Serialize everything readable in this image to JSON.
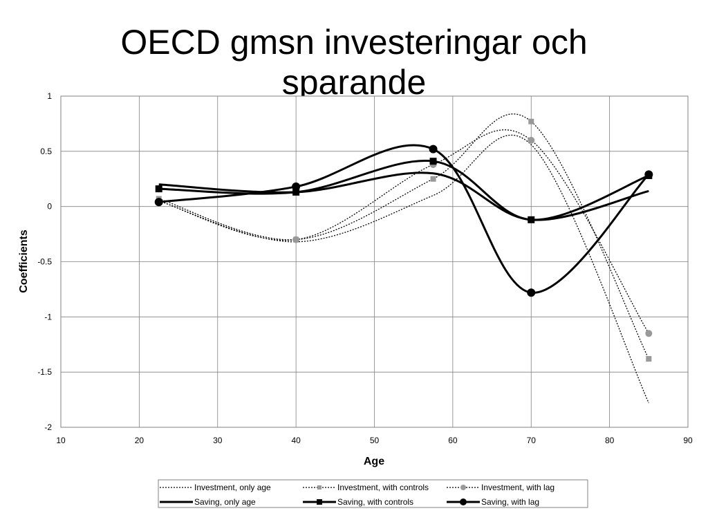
{
  "slide": {
    "title_line1": "OECD gmsn investeringar och",
    "title_line2": "sparande"
  },
  "chart_data": {
    "type": "line",
    "title": "OECD gmsn investeringar och sparande",
    "xlabel": "Age",
    "ylabel": "Coefficients",
    "xlim": [
      10,
      90
    ],
    "ylim": [
      -2,
      1
    ],
    "x_ticks": [
      10,
      20,
      30,
      40,
      50,
      60,
      70,
      80,
      90
    ],
    "y_ticks": [
      1,
      0.5,
      0,
      -0.5,
      -1,
      -1.5,
      -2
    ],
    "y_tick_labels": [
      "1",
      "0.5",
      "0",
      "-0.5",
      "-1",
      "-1.5",
      "-2"
    ],
    "grid": true,
    "legend_position": "bottom",
    "x": [
      22.5,
      40,
      57.5,
      70,
      85
    ],
    "series": [
      {
        "name": "Investment, only age",
        "values": [
          0.05,
          -0.32,
          0.1,
          0.56,
          -1.78
        ],
        "style": "dotted",
        "color": "#000000",
        "marker": "none"
      },
      {
        "name": "Investment, with controls",
        "values": [
          0.07,
          -0.3,
          0.25,
          0.77,
          -1.38
        ],
        "style": "dotted",
        "color": "#000000",
        "marker": "square",
        "marker_color": "#999999"
      },
      {
        "name": "Investment, with lag",
        "values": [
          0.05,
          -0.3,
          0.38,
          0.6,
          -1.15
        ],
        "style": "dotted",
        "color": "#000000",
        "marker": "circle",
        "marker_color": "#999999"
      },
      {
        "name": "Saving, only age",
        "values": [
          0.2,
          0.13,
          0.3,
          -0.12,
          0.14
        ],
        "style": "solid",
        "color": "#000000",
        "marker": "none"
      },
      {
        "name": "Saving, with controls",
        "values": [
          0.16,
          0.13,
          0.41,
          -0.12,
          0.28
        ],
        "style": "solid",
        "color": "#000000",
        "marker": "square",
        "marker_color": "#000000"
      },
      {
        "name": "Saving, with lag",
        "values": [
          0.04,
          0.18,
          0.52,
          -0.78,
          0.29
        ],
        "style": "solid",
        "color": "#000000",
        "marker": "circle",
        "marker_color": "#000000"
      }
    ]
  }
}
